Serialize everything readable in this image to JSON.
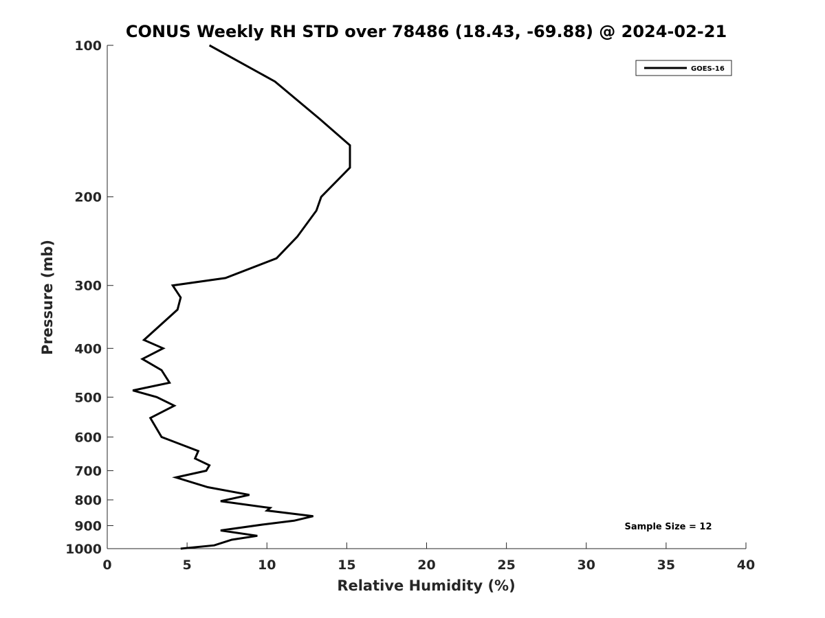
{
  "chart_data": {
    "type": "line",
    "title": "CONUS Weekly RH STD over 78486 (18.43, -69.88) @ 2024-02-21",
    "xlabel": "Relative Humidity (%)",
    "ylabel": "Pressure (mb)",
    "xlim": [
      0,
      40
    ],
    "ylim": [
      100,
      1000
    ],
    "y_scale": "log",
    "y_reversed": true,
    "grid": false,
    "legend_position": "top-right",
    "x_ticks": [
      0,
      5,
      10,
      15,
      20,
      25,
      30,
      35,
      40
    ],
    "y_ticks": [
      100,
      200,
      300,
      400,
      500,
      600,
      700,
      800,
      900,
      1000
    ],
    "series": [
      {
        "name": "GOES-16",
        "color": "#000000",
        "x": [
          6.4,
          10.5,
          13.3,
          15.2,
          15.2,
          13.4,
          13.1,
          11.9,
          10.6,
          7.4,
          4.1,
          4.6,
          4.4,
          2.3,
          3.5,
          2.2,
          3.4,
          3.9,
          1.6,
          3.1,
          4.2,
          2.7,
          3.4,
          5.7,
          5.5,
          6.4,
          6.2,
          4.3,
          6.3,
          8.9,
          7.1,
          10.2,
          10.0,
          12.9,
          11.7,
          9.8,
          7.1,
          9.4,
          7.8,
          6.7,
          4.6
        ],
        "y": [
          100,
          118,
          140,
          158,
          175,
          200,
          213,
          240,
          265,
          290,
          300,
          317,
          335,
          385,
          400,
          420,
          442,
          468,
          485,
          500,
          520,
          550,
          600,
          640,
          662,
          683,
          700,
          722,
          755,
          782,
          805,
          830,
          840,
          862,
          880,
          895,
          920,
          943,
          960,
          985,
          1000
        ]
      }
    ],
    "annotations": [
      "Sample Size = 12"
    ]
  }
}
